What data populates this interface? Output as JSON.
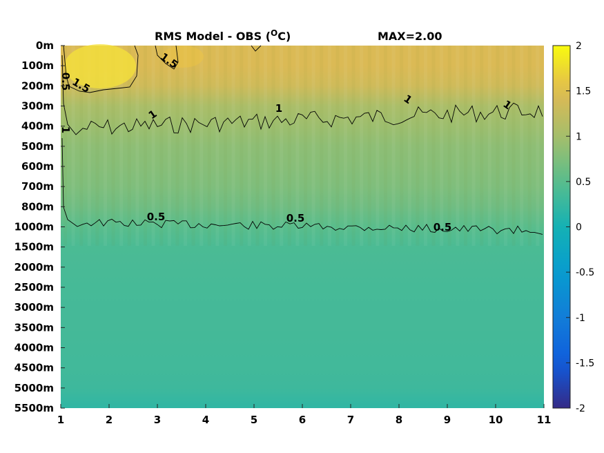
{
  "chart_data": {
    "type": "heatmap",
    "title": "RMS Model - OBS (",
    "title_unit": "O",
    "title_unit_tail": "C)",
    "max_label": "MAX=2.00",
    "x_ticks": [
      "1",
      "2",
      "3",
      "4",
      "5",
      "6",
      "7",
      "8",
      "9",
      "10",
      "11"
    ],
    "xlim": [
      1,
      11
    ],
    "y_ticks": [
      "0m",
      "100m",
      "200m",
      "300m",
      "400m",
      "500m",
      "600m",
      "700m",
      "800m",
      "1000m",
      "1500m",
      "2000m",
      "2500m",
      "3000m",
      "3500m",
      "4000m",
      "4500m",
      "5000m",
      "5500m"
    ],
    "colorbar": {
      "ticks": [
        "2",
        "1.5",
        "1",
        "0.5",
        "0",
        "-0.5",
        "-1",
        "-1.5",
        "-2"
      ],
      "min": -2,
      "max": 2,
      "colormap": "parula"
    },
    "contour_levels": [
      0.5,
      1,
      1.5
    ],
    "contour_labels": [
      "1.5",
      "1.5",
      "1",
      "1",
      "1",
      "1",
      "0.5",
      "0.5",
      "0.5",
      "0.5",
      "1"
    ],
    "depth_profile": [
      {
        "depth": "0m",
        "value": 1.45
      },
      {
        "depth": "100m",
        "value": 1.45
      },
      {
        "depth": "200m",
        "value": 1.35
      },
      {
        "depth": "300m",
        "value": 1.05
      },
      {
        "depth": "400m",
        "value": 0.95
      },
      {
        "depth": "500m",
        "value": 0.85
      },
      {
        "depth": "600m",
        "value": 0.8
      },
      {
        "depth": "700m",
        "value": 0.75
      },
      {
        "depth": "800m",
        "value": 0.65
      },
      {
        "depth": "1000m",
        "value": 0.5
      },
      {
        "depth": "1500m",
        "value": 0.4
      },
      {
        "depth": "2000m",
        "value": 0.38
      },
      {
        "depth": "2500m",
        "value": 0.36
      },
      {
        "depth": "3000m",
        "value": 0.35
      },
      {
        "depth": "3500m",
        "value": 0.35
      },
      {
        "depth": "4000m",
        "value": 0.34
      },
      {
        "depth": "4500m",
        "value": 0.33
      },
      {
        "depth": "5000m",
        "value": 0.3
      },
      {
        "depth": "5500m",
        "value": 0.2
      }
    ]
  }
}
